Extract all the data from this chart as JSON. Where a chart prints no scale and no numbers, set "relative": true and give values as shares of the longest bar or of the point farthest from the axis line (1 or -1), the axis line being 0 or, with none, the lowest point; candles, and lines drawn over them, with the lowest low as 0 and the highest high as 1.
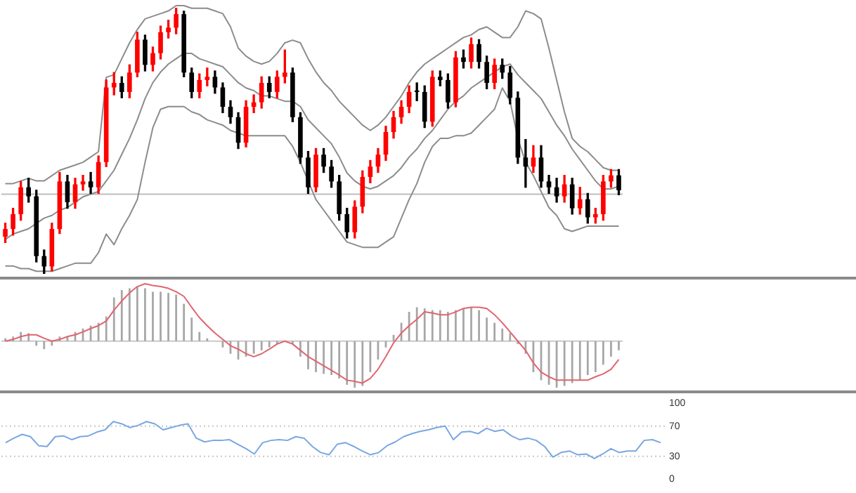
{
  "chart_data": [
    {
      "type": "candlestick",
      "relative": true,
      "tick_labels": false,
      "categories": [
        null,
        null,
        null,
        null,
        null,
        null,
        null,
        null,
        null,
        null,
        null,
        null,
        null,
        null,
        null,
        null,
        null,
        null,
        null,
        null,
        null,
        null,
        null,
        null,
        null,
        null,
        null,
        null,
        null,
        null,
        null,
        null,
        null,
        null,
        null,
        null,
        null,
        null,
        null,
        null,
        null,
        null,
        null,
        null,
        null,
        null,
        null,
        null,
        null,
        null,
        null,
        null,
        null,
        null,
        null,
        null,
        null,
        null,
        null,
        null,
        null,
        null,
        null,
        null,
        null,
        null,
        null,
        null,
        null,
        null,
        null,
        null,
        null,
        null,
        null,
        null,
        null,
        null,
        null,
        null
      ],
      "ohlc": [
        [
          0.14,
          0.191,
          0.118,
          0.169
        ],
        [
          0.169,
          0.247,
          0.146,
          0.225
        ],
        [
          0.225,
          0.348,
          0.202,
          0.326
        ],
        [
          0.326,
          0.36,
          0.27,
          0.292
        ],
        [
          0.292,
          0.315,
          0.045,
          0.067
        ],
        [
          0.067,
          0.09,
          0,
          0.028
        ],
        [
          0.028,
          0.191,
          0.011,
          0.169
        ],
        [
          0.169,
          0.382,
          0.152,
          0.348
        ],
        [
          0.348,
          0.371,
          0.247,
          0.27
        ],
        [
          0.27,
          0.36,
          0.247,
          0.337
        ],
        [
          0.337,
          0.371,
          0.315,
          0.348
        ],
        [
          0.348,
          0.382,
          0.303,
          0.326
        ],
        [
          0.326,
          0.444,
          0.303,
          0.421
        ],
        [
          0.421,
          0.73,
          0.404,
          0.702
        ],
        [
          0.702,
          0.758,
          0.674,
          0.719
        ],
        [
          0.719,
          0.742,
          0.663,
          0.685
        ],
        [
          0.685,
          0.787,
          0.663,
          0.758
        ],
        [
          0.758,
          0.91,
          0.742,
          0.882
        ],
        [
          0.882,
          0.899,
          0.764,
          0.787
        ],
        [
          0.787,
          0.854,
          0.764,
          0.831
        ],
        [
          0.831,
          0.933,
          0.809,
          0.91
        ],
        [
          0.91,
          0.955,
          0.888,
          0.927
        ],
        [
          0.927,
          1,
          0.904,
          0.978
        ],
        [
          0.978,
          0.989,
          0.742,
          0.758
        ],
        [
          0.758,
          0.775,
          0.663,
          0.685
        ],
        [
          0.685,
          0.753,
          0.663,
          0.73
        ],
        [
          0.73,
          0.775,
          0.708,
          0.742
        ],
        [
          0.742,
          0.764,
          0.68,
          0.702
        ],
        [
          0.702,
          0.719,
          0.607,
          0.629
        ],
        [
          0.629,
          0.652,
          0.567,
          0.59
        ],
        [
          0.59,
          0.607,
          0.472,
          0.494
        ],
        [
          0.494,
          0.652,
          0.478,
          0.629
        ],
        [
          0.629,
          0.674,
          0.607,
          0.646
        ],
        [
          0.646,
          0.742,
          0.624,
          0.719
        ],
        [
          0.719,
          0.742,
          0.663,
          0.685
        ],
        [
          0.685,
          0.764,
          0.663,
          0.742
        ],
        [
          0.742,
          0.843,
          0.719,
          0.758
        ],
        [
          0.758,
          0.775,
          0.573,
          0.59
        ],
        [
          0.59,
          0.607,
          0.416,
          0.438
        ],
        [
          0.438,
          0.461,
          0.303,
          0.326
        ],
        [
          0.326,
          0.472,
          0.309,
          0.449
        ],
        [
          0.449,
          0.472,
          0.382,
          0.404
        ],
        [
          0.404,
          0.427,
          0.326,
          0.348
        ],
        [
          0.348,
          0.371,
          0.202,
          0.225
        ],
        [
          0.225,
          0.247,
          0.135,
          0.157
        ],
        [
          0.157,
          0.275,
          0.135,
          0.253
        ],
        [
          0.253,
          0.388,
          0.23,
          0.365
        ],
        [
          0.365,
          0.427,
          0.343,
          0.404
        ],
        [
          0.404,
          0.472,
          0.382,
          0.449
        ],
        [
          0.449,
          0.556,
          0.427,
          0.534
        ],
        [
          0.534,
          0.612,
          0.511,
          0.59
        ],
        [
          0.59,
          0.652,
          0.567,
          0.629
        ],
        [
          0.629,
          0.708,
          0.607,
          0.685
        ],
        [
          0.685,
          0.719,
          0.652,
          0.685
        ],
        [
          0.685,
          0.708,
          0.551,
          0.573
        ],
        [
          0.573,
          0.764,
          0.556,
          0.742
        ],
        [
          0.742,
          0.764,
          0.708,
          0.73
        ],
        [
          0.73,
          0.753,
          0.624,
          0.646
        ],
        [
          0.646,
          0.837,
          0.629,
          0.815
        ],
        [
          0.815,
          0.843,
          0.775,
          0.798
        ],
        [
          0.798,
          0.888,
          0.775,
          0.865
        ],
        [
          0.865,
          0.882,
          0.775,
          0.798
        ],
        [
          0.798,
          0.82,
          0.697,
          0.719
        ],
        [
          0.719,
          0.809,
          0.697,
          0.787
        ],
        [
          0.787,
          0.809,
          0.736,
          0.758
        ],
        [
          0.758,
          0.781,
          0.64,
          0.663
        ],
        [
          0.663,
          0.685,
          0.416,
          0.438
        ],
        [
          0.438,
          0.506,
          0.326,
          0.404
        ],
        [
          0.404,
          0.483,
          0.382,
          0.438
        ],
        [
          0.438,
          0.483,
          0.326,
          0.348
        ],
        [
          0.348,
          0.371,
          0.303,
          0.326
        ],
        [
          0.326,
          0.36,
          0.27,
          0.292
        ],
        [
          0.292,
          0.371,
          0.27,
          0.337
        ],
        [
          0.337,
          0.36,
          0.225,
          0.247
        ],
        [
          0.247,
          0.326,
          0.225,
          0.281
        ],
        [
          0.281,
          0.303,
          0.191,
          0.213
        ],
        [
          0.213,
          0.247,
          0.191,
          0.225
        ],
        [
          0.225,
          0.371,
          0.202,
          0.348
        ],
        [
          0.348,
          0.393,
          0.326,
          0.371
        ],
        [
          0.371,
          0.393,
          0.298,
          0.315
        ]
      ],
      "colors": [
        "#ff0000",
        "#ff0000",
        "#ff0000",
        "#000000",
        "#000000",
        "#000000",
        "#ff0000",
        "#ff0000",
        "#000000",
        "#ff0000",
        "#ff0000",
        "#000000",
        "#ff0000",
        "#ff0000",
        "#ff0000",
        "#000000",
        "#ff0000",
        "#ff0000",
        "#000000",
        "#ff0000",
        "#ff0000",
        "#ff0000",
        "#ff0000",
        "#000000",
        "#000000",
        "#ff0000",
        "#ff0000",
        "#000000",
        "#000000",
        "#000000",
        "#000000",
        "#ff0000",
        "#ff0000",
        "#ff0000",
        "#000000",
        "#ff0000",
        "#ff0000",
        "#000000",
        "#000000",
        "#000000",
        "#ff0000",
        "#000000",
        "#000000",
        "#000000",
        "#000000",
        "#ff0000",
        "#ff0000",
        "#ff0000",
        "#ff0000",
        "#ff0000",
        "#ff0000",
        "#ff0000",
        "#ff0000",
        "#000000",
        "#000000",
        "#ff0000",
        "#000000",
        "#000000",
        "#ff0000",
        "#000000",
        "#ff0000",
        "#000000",
        "#000000",
        "#ff0000",
        "#000000",
        "#000000",
        "#000000",
        "#000000",
        "#ff0000",
        "#000000",
        "#000000",
        "#000000",
        "#ff0000",
        "#000000",
        "#ff0000",
        "#000000",
        "#ff0000",
        "#ff0000",
        "#ff0000",
        "#000000"
      ],
      "series": [
        {
          "type": "line",
          "color": "#8c8c8c",
          "values": [
            0.34,
            0.34,
            0.35,
            0.36,
            0.35,
            0.35,
            0.37,
            0.39,
            0.4,
            0.41,
            0.42,
            0.44,
            0.46,
            0.74,
            0.75,
            0.81,
            0.87,
            0.92,
            0.96,
            0.97,
            0.98,
            0.99,
            1.01,
            1.01,
            1.0,
            1.0,
            1.0,
            0.99,
            0.98,
            0.93,
            0.85,
            0.82,
            0.8,
            0.79,
            0.8,
            0.83,
            0.87,
            0.88,
            0.87,
            0.81,
            0.76,
            0.72,
            0.69,
            0.65,
            0.62,
            0.59,
            0.56,
            0.54,
            0.56,
            0.59,
            0.63,
            0.67,
            0.72,
            0.76,
            0.79,
            0.81,
            0.83,
            0.85,
            0.87,
            0.89,
            0.9,
            0.92,
            0.93,
            0.91,
            0.89,
            0.89,
            0.93,
            0.99,
            0.98,
            0.96,
            0.85,
            0.73,
            0.61,
            0.51,
            0.48,
            0.46,
            0.43,
            0.4,
            0.39,
            0.39
          ]
        },
        {
          "type": "line",
          "color": "#8c8c8c",
          "values": [
            0.13,
            0.15,
            0.16,
            0.17,
            0.19,
            0.21,
            0.22,
            0.24,
            0.25,
            0.27,
            0.29,
            0.3,
            0.31,
            0.35,
            0.39,
            0.45,
            0.51,
            0.58,
            0.66,
            0.72,
            0.76,
            0.79,
            0.81,
            0.83,
            0.83,
            0.81,
            0.8,
            0.79,
            0.78,
            0.75,
            0.72,
            0.7,
            0.69,
            0.67,
            0.67,
            0.66,
            0.65,
            0.65,
            0.63,
            0.58,
            0.55,
            0.52,
            0.49,
            0.44,
            0.38,
            0.35,
            0.33,
            0.32,
            0.33,
            0.35,
            0.37,
            0.4,
            0.44,
            0.47,
            0.51,
            0.54,
            0.58,
            0.62,
            0.65,
            0.67,
            0.7,
            0.72,
            0.74,
            0.76,
            0.78,
            0.79,
            0.75,
            0.72,
            0.69,
            0.66,
            0.61,
            0.56,
            0.52,
            0.47,
            0.43,
            0.39,
            0.35,
            0.32,
            0.32,
            0.33
          ]
        },
        {
          "type": "line",
          "color": "#8c8c8c",
          "values": [
            0.03,
            0.03,
            0.02,
            0.02,
            0.01,
            0.01,
            0.01,
            0.02,
            0.03,
            0.04,
            0.04,
            0.04,
            0.08,
            0.15,
            0.11,
            0.17,
            0.22,
            0.28,
            0.42,
            0.55,
            0.62,
            0.63,
            0.63,
            0.63,
            0.61,
            0.6,
            0.58,
            0.57,
            0.56,
            0.54,
            0.53,
            0.52,
            0.52,
            0.52,
            0.52,
            0.52,
            0.52,
            0.48,
            0.42,
            0.35,
            0.28,
            0.24,
            0.2,
            0.16,
            0.12,
            0.11,
            0.1,
            0.1,
            0.1,
            0.12,
            0.14,
            0.21,
            0.28,
            0.34,
            0.42,
            0.48,
            0.51,
            0.51,
            0.52,
            0.52,
            0.53,
            0.56,
            0.59,
            0.62,
            0.7,
            0.65,
            0.51,
            0.42,
            0.37,
            0.31,
            0.25,
            0.22,
            0.17,
            0.16,
            0.17,
            0.18,
            0.18,
            0.18,
            0.18,
            0.18
          ]
        }
      ],
      "ref_lines": [
        {
          "axis": "y",
          "value": 0.3,
          "color": "#bdbdbd"
        }
      ]
    },
    {
      "type": "bar",
      "relative": true,
      "tick_labels": false,
      "categories": [
        null,
        null,
        null,
        null,
        null,
        null,
        null,
        null,
        null,
        null,
        null,
        null,
        null,
        null,
        null,
        null,
        null,
        null,
        null,
        null,
        null,
        null,
        null,
        null,
        null,
        null,
        null,
        null,
        null,
        null,
        null,
        null,
        null,
        null,
        null,
        null,
        null,
        null,
        null,
        null,
        null,
        null,
        null,
        null,
        null,
        null,
        null,
        null,
        null,
        null,
        null,
        null,
        null,
        null,
        null,
        null,
        null,
        null,
        null,
        null,
        null,
        null,
        null,
        null,
        null,
        null,
        null,
        null,
        null,
        null,
        null,
        null,
        null,
        null,
        null,
        null,
        null,
        null,
        null,
        null
      ],
      "series": [
        {
          "type": "bar",
          "color": "#a6a6a6",
          "values": [
            0.05,
            0.08,
            0.16,
            0.14,
            -0.08,
            -0.14,
            -0.08,
            0.08,
            0.08,
            0.16,
            0.22,
            0.27,
            0.32,
            0.43,
            0.76,
            0.89,
            0.92,
            0.95,
            0.92,
            0.86,
            0.86,
            0.84,
            0.81,
            0.65,
            0.41,
            0.16,
            0.05,
            0,
            -0.11,
            -0.22,
            -0.32,
            -0.27,
            -0.22,
            -0.16,
            -0.11,
            -0.05,
            0,
            -0.05,
            -0.27,
            -0.49,
            -0.54,
            -0.57,
            -0.59,
            -0.65,
            -0.76,
            -0.81,
            -0.78,
            -0.54,
            -0.32,
            -0.11,
            0.11,
            0.32,
            0.51,
            0.59,
            0.57,
            0.54,
            0.54,
            0.51,
            0.54,
            0.57,
            0.59,
            0.54,
            0.41,
            0.32,
            0.22,
            0.14,
            -0.05,
            -0.22,
            -0.54,
            -0.68,
            -0.76,
            -0.81,
            -0.78,
            -0.73,
            -0.68,
            -0.59,
            -0.54,
            -0.41,
            -0.27,
            -0.16
          ]
        },
        {
          "type": "line",
          "color": "#e0646e",
          "values": [
            0,
            0.03,
            0.08,
            0.11,
            0.11,
            0.05,
            0,
            0.03,
            0.08,
            0.11,
            0.16,
            0.22,
            0.27,
            0.35,
            0.54,
            0.7,
            0.84,
            0.95,
            1,
            0.97,
            0.95,
            0.92,
            0.86,
            0.78,
            0.59,
            0.41,
            0.27,
            0.14,
            0.03,
            -0.08,
            -0.14,
            -0.22,
            -0.27,
            -0.22,
            -0.14,
            -0.05,
            0,
            -0.05,
            -0.16,
            -0.27,
            -0.35,
            -0.43,
            -0.51,
            -0.59,
            -0.68,
            -0.7,
            -0.73,
            -0.65,
            -0.49,
            -0.27,
            -0.03,
            0.14,
            0.27,
            0.38,
            0.51,
            0.49,
            0.46,
            0.46,
            0.51,
            0.57,
            0.59,
            0.59,
            0.57,
            0.46,
            0.32,
            0.16,
            0,
            -0.16,
            -0.38,
            -0.54,
            -0.62,
            -0.68,
            -0.68,
            -0.68,
            -0.68,
            -0.68,
            -0.62,
            -0.57,
            -0.49,
            -0.32
          ]
        }
      ]
    },
    {
      "type": "line",
      "tick_labels": "y",
      "ylim": [
        0,
        100
      ],
      "yticks": [
        0,
        30,
        70,
        100
      ],
      "categories": [
        null,
        null,
        null,
        null,
        null,
        null,
        null,
        null,
        null,
        null,
        null,
        null,
        null,
        null,
        null,
        null,
        null,
        null,
        null,
        null,
        null,
        null,
        null,
        null,
        null,
        null,
        null,
        null,
        null,
        null,
        null,
        null,
        null,
        null,
        null,
        null,
        null,
        null,
        null,
        null,
        null,
        null,
        null,
        null,
        null,
        null,
        null,
        null,
        null,
        null,
        null,
        null,
        null,
        null,
        null,
        null,
        null,
        null,
        null,
        null,
        null,
        null,
        null,
        null,
        null,
        null,
        null,
        null,
        null,
        null,
        null,
        null,
        null,
        null,
        null,
        null,
        null,
        null,
        null,
        null
      ],
      "series": [
        {
          "color": "#7aa7e0",
          "values": [
            48,
            54,
            59,
            56,
            44,
            43,
            56,
            57,
            52,
            56,
            57,
            62,
            65,
            76,
            73,
            68,
            71,
            76,
            73,
            65,
            68,
            71,
            73,
            54,
            49,
            51,
            51,
            52,
            46,
            40,
            33,
            48,
            51,
            52,
            51,
            56,
            54,
            43,
            35,
            32,
            46,
            48,
            43,
            37,
            32,
            35,
            44,
            49,
            56,
            60,
            63,
            65,
            68,
            70,
            52,
            62,
            63,
            60,
            67,
            63,
            65,
            57,
            52,
            54,
            51,
            43,
            29,
            35,
            37,
            32,
            33,
            27,
            33,
            40,
            35,
            37,
            37,
            51,
            52,
            48
          ]
        }
      ],
      "ref_lines": [
        {
          "axis": "y",
          "value": 70,
          "color": "#c8c8c8",
          "line_style": "dotted"
        },
        {
          "axis": "y",
          "value": 30,
          "color": "#c8c8c8",
          "line_style": "dotted"
        }
      ]
    }
  ]
}
